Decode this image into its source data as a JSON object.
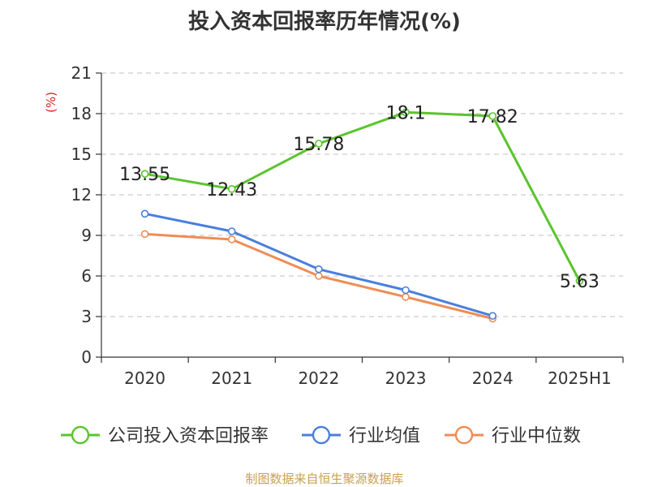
{
  "chart_data": {
    "type": "line",
    "title": "投入资本回报率历年情况(%)",
    "ylabel": "(%)",
    "xlabel": "",
    "categories": [
      "2020",
      "2021",
      "2022",
      "2023",
      "2024",
      "2025H1"
    ],
    "ylim": [
      0,
      21
    ],
    "yticks": [
      0,
      3,
      6,
      9,
      12,
      15,
      18,
      21
    ],
    "grid": true,
    "legend_position": "bottom",
    "series": [
      {
        "name": "公司投入资本回报率",
        "color": "#5ac42e",
        "values": [
          13.55,
          12.43,
          15.78,
          18.1,
          17.82,
          5.63
        ],
        "labels": [
          "13.55",
          "12.43",
          "15.78",
          "18.1",
          "17.82",
          "5.63"
        ]
      },
      {
        "name": "行业均值",
        "color": "#4a7fdc",
        "values": [
          10.6,
          9.3,
          6.5,
          4.95,
          3.05,
          null
        ]
      },
      {
        "name": "行业中位数",
        "color": "#f08c55",
        "values": [
          9.1,
          8.7,
          6.0,
          4.45,
          2.85,
          null
        ]
      }
    ],
    "unit_color": "#e02020"
  },
  "source_note": "制图数据来自恒生聚源数据库"
}
